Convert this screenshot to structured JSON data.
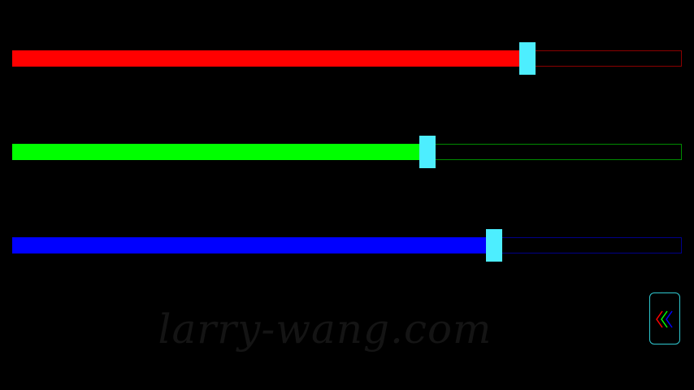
{
  "sliders": [
    {
      "name": "red",
      "value": 0.77,
      "fill_color": "#ff0000",
      "track_color": "#8a0000"
    },
    {
      "name": "green",
      "value": 0.62,
      "fill_color": "#00ff00",
      "track_color": "#008a00"
    },
    {
      "name": "blue",
      "value": 0.72,
      "fill_color": "#0000ff",
      "track_color": "#00008a"
    }
  ],
  "thumb_color": "#4deeff",
  "watermark": "larry-wang.com",
  "back_button": {
    "icon": "chevrons-left-icon",
    "colors": [
      "#ff0000",
      "#00ff00",
      "#0000ff"
    ]
  }
}
